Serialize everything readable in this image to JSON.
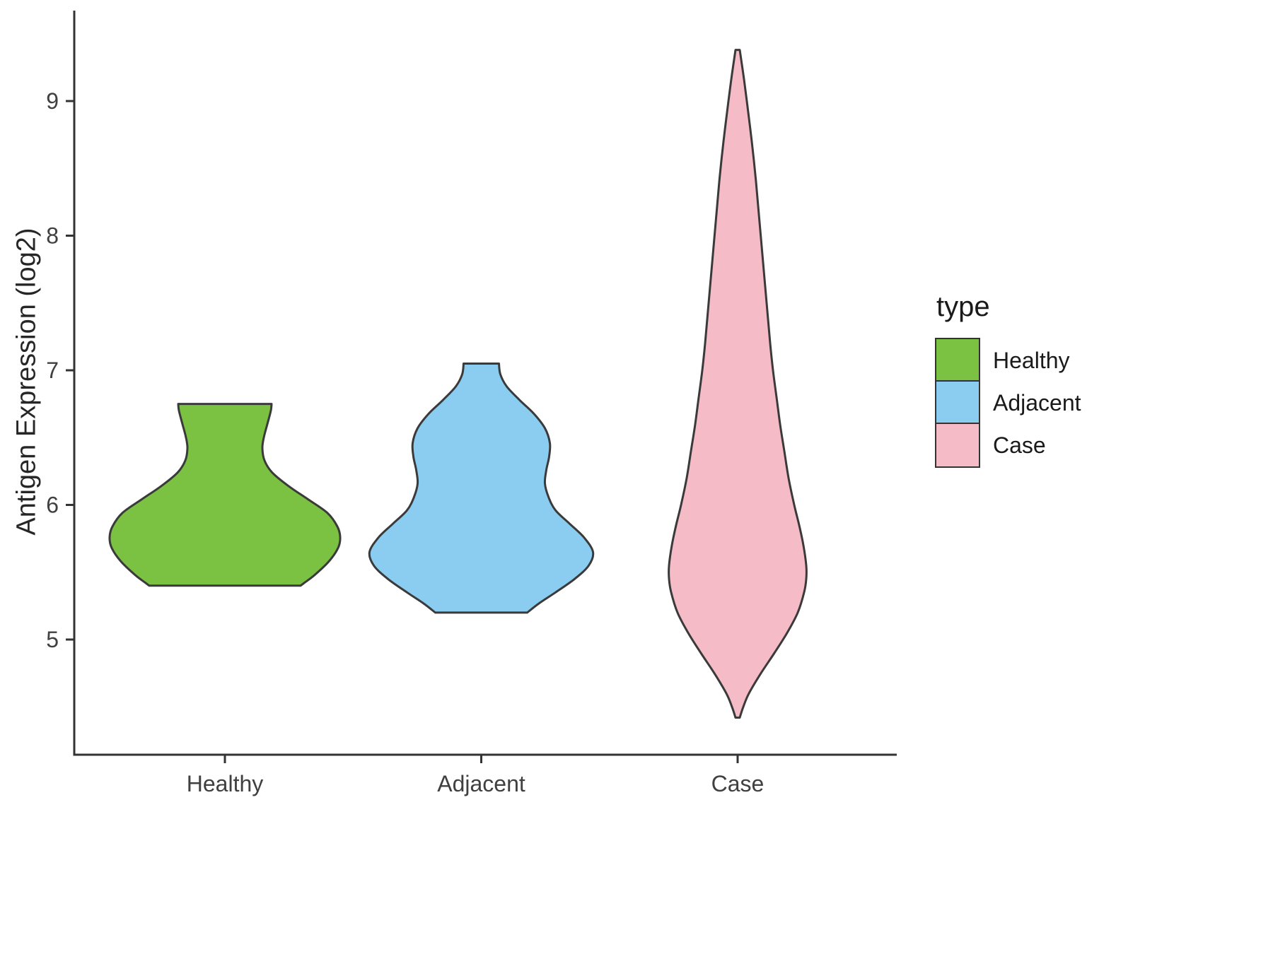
{
  "chart_data": {
    "type": "violin",
    "title": "",
    "xlabel": "",
    "ylabel": "Antigen Expression (log2)",
    "categories": [
      "Healthy",
      "Adjacent",
      "Case"
    ],
    "y_ticks": [
      5,
      6,
      7,
      8,
      9
    ],
    "ylim": [
      4.2,
      9.6
    ],
    "grid": false,
    "legend": {
      "title": "type",
      "position": "right",
      "items": [
        {
          "label": "Healthy",
          "color": "#7BC242"
        },
        {
          "label": "Adjacent",
          "color": "#8BCDF1"
        },
        {
          "label": "Case",
          "color": "#F5BCC8"
        }
      ]
    },
    "series": [
      {
        "name": "Healthy",
        "color": "#7BC242",
        "y_range": [
          5.4,
          6.75
        ],
        "profile": [
          [
            6.75,
            66
          ],
          [
            6.7,
            65
          ],
          [
            6.6,
            60
          ],
          [
            6.5,
            55
          ],
          [
            6.42,
            53
          ],
          [
            6.33,
            56
          ],
          [
            6.24,
            67
          ],
          [
            6.14,
            90
          ],
          [
            6.04,
            118
          ],
          [
            5.94,
            145
          ],
          [
            5.84,
            159
          ],
          [
            5.76,
            163
          ],
          [
            5.68,
            160
          ],
          [
            5.58,
            147
          ],
          [
            5.48,
            127
          ],
          [
            5.42,
            112
          ],
          [
            5.4,
            107
          ]
        ]
      },
      {
        "name": "Adjacent",
        "color": "#8BCDF1",
        "y_range": [
          5.2,
          7.05
        ],
        "profile": [
          [
            7.05,
            25
          ],
          [
            6.97,
            27
          ],
          [
            6.88,
            36
          ],
          [
            6.78,
            54
          ],
          [
            6.68,
            74
          ],
          [
            6.57,
            90
          ],
          [
            6.46,
            97
          ],
          [
            6.36,
            96
          ],
          [
            6.26,
            92
          ],
          [
            6.16,
            90
          ],
          [
            6.06,
            95
          ],
          [
            5.96,
            105
          ],
          [
            5.86,
            125
          ],
          [
            5.76,
            145
          ],
          [
            5.65,
            158
          ],
          [
            5.55,
            152
          ],
          [
            5.45,
            132
          ],
          [
            5.35,
            105
          ],
          [
            5.27,
            82
          ],
          [
            5.2,
            65
          ]
        ]
      },
      {
        "name": "Case",
        "color": "#F5BCC8",
        "y_range": [
          4.4,
          9.38
        ],
        "profile": [
          [
            9.38,
            3
          ],
          [
            9.2,
            8
          ],
          [
            9.0,
            13
          ],
          [
            8.7,
            20
          ],
          [
            8.4,
            26
          ],
          [
            8.1,
            31
          ],
          [
            7.8,
            36
          ],
          [
            7.5,
            41
          ],
          [
            7.2,
            46
          ],
          [
            7.0,
            50
          ],
          [
            6.8,
            55
          ],
          [
            6.6,
            60
          ],
          [
            6.4,
            66
          ],
          [
            6.2,
            72
          ],
          [
            6.0,
            80
          ],
          [
            5.85,
            87
          ],
          [
            5.7,
            93
          ],
          [
            5.55,
            97
          ],
          [
            5.45,
            97
          ],
          [
            5.35,
            94
          ],
          [
            5.2,
            85
          ],
          [
            5.05,
            70
          ],
          [
            4.9,
            52
          ],
          [
            4.75,
            33
          ],
          [
            4.6,
            16
          ],
          [
            4.5,
            8
          ],
          [
            4.42,
            3
          ]
        ]
      }
    ]
  },
  "style": {
    "violin_stroke": "#3A3A3A",
    "axis_color": "#333333",
    "tick_label_color": "#404040",
    "background": "#FFFFFF"
  }
}
